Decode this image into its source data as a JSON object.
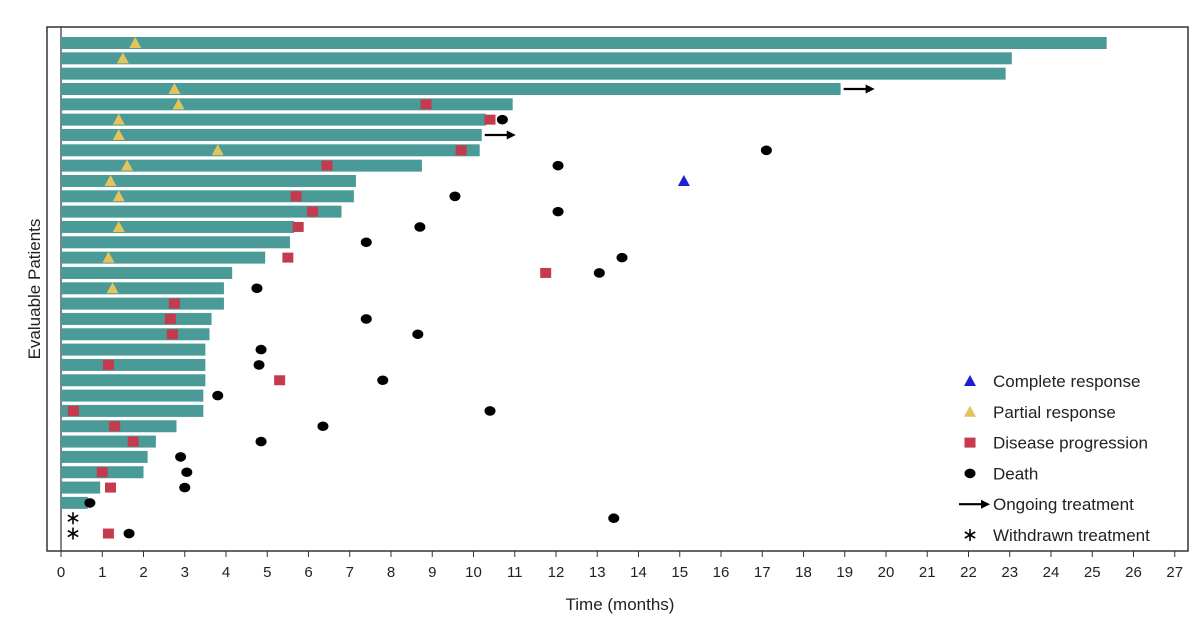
{
  "chart_data": {
    "type": "swimmer",
    "title": "",
    "xlabel": "Time (months)",
    "ylabel": "Evaluable Patients",
    "xlim": [
      0,
      27
    ],
    "x_ticks": [
      0,
      1,
      2,
      3,
      4,
      5,
      6,
      7,
      8,
      9,
      10,
      11,
      12,
      13,
      14,
      15,
      16,
      17,
      18,
      19,
      20,
      21,
      22,
      23,
      24,
      25,
      26,
      27
    ],
    "grid": false,
    "legend_position": "bottom-right",
    "colors": {
      "bar": "#4a9a97",
      "complete_response": "#1f1fd0",
      "partial_response": "#e2c45a",
      "disease_progression": "#c63a4e",
      "death": "#000000",
      "ongoing": "#000000",
      "withdrawn": "#000000"
    },
    "legend": [
      {
        "key": "complete_response",
        "label": "Complete response"
      },
      {
        "key": "partial_response",
        "label": "Partial response"
      },
      {
        "key": "disease_progression",
        "label": "Disease progression"
      },
      {
        "key": "death",
        "label": "Death"
      },
      {
        "key": "ongoing",
        "label": "Ongoing treatment"
      },
      {
        "key": "withdrawn",
        "label": "Withdrawn treatment"
      }
    ],
    "patients": [
      {
        "bar": 25.35,
        "pr": [
          1.8
        ]
      },
      {
        "bar": 23.05,
        "pr": [
          1.5
        ]
      },
      {
        "bar": 22.9
      },
      {
        "bar": 18.9,
        "pr": [
          2.75
        ],
        "ongoing": true
      },
      {
        "bar": 10.95,
        "pr": [
          2.85
        ],
        "pd": [
          8.85
        ]
      },
      {
        "bar": 10.3,
        "pr": [
          1.4
        ],
        "pd": [
          10.4
        ],
        "death": 10.7
      },
      {
        "bar": 10.2,
        "pr": [
          1.4
        ],
        "ongoing": true
      },
      {
        "bar": 10.15,
        "pr": [
          3.8
        ],
        "pd": [
          9.7
        ],
        "death": 17.1
      },
      {
        "bar": 8.75,
        "pr": [
          1.6
        ],
        "pd": [
          6.45
        ],
        "death": 12.05
      },
      {
        "bar": 7.15,
        "pr": [
          1.2
        ],
        "cr": [
          15.1
        ]
      },
      {
        "bar": 7.1,
        "pr": [
          1.4
        ],
        "pd": [
          5.7
        ],
        "death": 9.55
      },
      {
        "bar": 6.8,
        "pd": [
          6.1
        ],
        "death": 12.05
      },
      {
        "bar": 5.65,
        "pr": [
          1.4
        ],
        "pd": [
          5.75
        ],
        "death": 8.7
      },
      {
        "bar": 5.55,
        "death": 7.4
      },
      {
        "bar": 4.95,
        "pr": [
          1.15
        ],
        "pd": [
          5.5
        ],
        "death": 13.6
      },
      {
        "bar": 4.15,
        "pd": [
          11.75
        ],
        "death": 13.05
      },
      {
        "bar": 3.95,
        "pr": [
          1.25
        ],
        "death": 4.75
      },
      {
        "bar": 3.95,
        "pd": [
          2.75
        ]
      },
      {
        "bar": 3.65,
        "pd": [
          2.65
        ],
        "death": 7.4
      },
      {
        "bar": 3.6,
        "pd": [
          2.7
        ],
        "death": 8.65
      },
      {
        "bar": 3.5,
        "death": 4.85
      },
      {
        "bar": 3.5,
        "pd": [
          1.15
        ],
        "death": 4.8
      },
      {
        "bar": 3.5,
        "pd": [
          5.3
        ],
        "death": 7.8
      },
      {
        "bar": 3.45,
        "death": 3.8
      },
      {
        "bar": 3.45,
        "pd": [
          0.3
        ],
        "death": 10.4
      },
      {
        "bar": 2.8,
        "pd": [
          1.3
        ],
        "death": 6.35
      },
      {
        "bar": 2.3,
        "pd": [
          1.75
        ],
        "death": 4.85
      },
      {
        "bar": 2.1,
        "death": 2.9
      },
      {
        "bar": 2.0,
        "pd": [
          1.0
        ],
        "death": 3.05
      },
      {
        "bar": 0.95,
        "pd": [
          1.2
        ],
        "death": 3.0
      },
      {
        "bar": 0.65,
        "death": 0.7
      },
      {
        "bar": 0,
        "withdrawn": true,
        "death": 13.4
      },
      {
        "bar": 0,
        "withdrawn": true,
        "pd": [
          1.15
        ],
        "death": 1.65
      }
    ]
  }
}
